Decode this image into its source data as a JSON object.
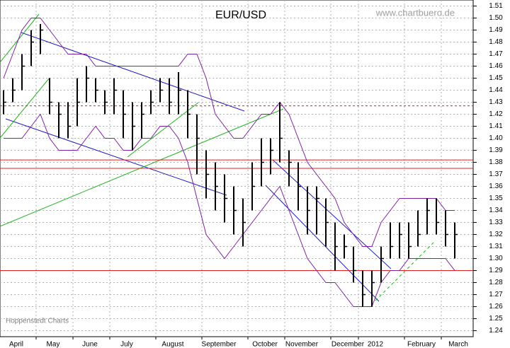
{
  "chart_data": {
    "type": "hlc",
    "title": "EUR/USD",
    "annotations": [
      "www.chartbuero.de",
      "Hoppenstedt Charts"
    ],
    "categories": [
      "April",
      null,
      null,
      null,
      "May",
      null,
      null,
      null,
      "June",
      null,
      null,
      null,
      "July",
      null,
      null,
      null,
      null,
      "August",
      null,
      null,
      null,
      null,
      "September",
      null,
      null,
      null,
      null,
      "October",
      null,
      null,
      null,
      "November",
      null,
      null,
      null,
      null,
      "December",
      null,
      null,
      "2012",
      null,
      null,
      null,
      null,
      "February",
      null,
      null,
      null,
      "March",
      null
    ],
    "high": [
      1.44,
      1.45,
      1.47,
      1.49,
      1.495,
      1.45,
      1.43,
      1.43,
      1.45,
      1.46,
      1.45,
      1.44,
      1.45,
      1.44,
      1.43,
      1.43,
      1.44,
      1.45,
      1.45,
      1.455,
      1.44,
      1.42,
      1.39,
      1.38,
      1.37,
      1.36,
      1.35,
      1.38,
      1.4,
      1.4,
      1.43,
      1.39,
      1.38,
      1.36,
      1.36,
      1.35,
      1.33,
      1.32,
      1.31,
      1.29,
      1.29,
      1.31,
      1.33,
      1.33,
      1.33,
      1.34,
      1.35,
      1.35,
      1.34,
      1.33
    ],
    "low": [
      1.42,
      1.43,
      1.44,
      1.46,
      1.47,
      1.42,
      1.4,
      1.4,
      1.41,
      1.43,
      1.43,
      1.42,
      1.42,
      1.4,
      1.39,
      1.4,
      1.42,
      1.43,
      1.42,
      1.42,
      1.4,
      1.37,
      1.35,
      1.34,
      1.33,
      1.32,
      1.31,
      1.34,
      1.36,
      1.37,
      1.38,
      1.36,
      1.34,
      1.32,
      1.32,
      1.31,
      1.29,
      1.3,
      1.28,
      1.26,
      1.26,
      1.28,
      1.3,
      1.3,
      1.3,
      1.31,
      1.32,
      1.32,
      1.31,
      1.3
    ],
    "close": [
      1.43,
      1.44,
      1.46,
      1.48,
      1.49,
      1.43,
      1.42,
      1.41,
      1.43,
      1.45,
      1.44,
      1.43,
      1.44,
      1.42,
      1.41,
      1.42,
      1.43,
      1.44,
      1.43,
      1.44,
      1.42,
      1.4,
      1.37,
      1.36,
      1.35,
      1.34,
      1.33,
      1.36,
      1.38,
      1.39,
      1.4,
      1.38,
      1.36,
      1.34,
      1.35,
      1.33,
      1.31,
      1.31,
      1.29,
      1.27,
      1.28,
      1.3,
      1.31,
      1.32,
      1.31,
      1.32,
      1.34,
      1.33,
      1.32,
      1.32
    ],
    "color": "#000000",
    "bands": {
      "color": "#8020a0",
      "upper": [
        1.45,
        1.47,
        1.49,
        1.5,
        1.5,
        1.49,
        1.48,
        1.47,
        1.47,
        1.47,
        1.46,
        1.46,
        1.46,
        1.46,
        1.46,
        1.46,
        1.46,
        1.46,
        1.46,
        1.46,
        1.47,
        1.47,
        1.45,
        1.42,
        1.41,
        1.4,
        1.4,
        1.41,
        1.42,
        1.42,
        1.43,
        1.42,
        1.4,
        1.38,
        1.37,
        1.36,
        1.35,
        1.33,
        1.32,
        1.31,
        1.31,
        1.33,
        1.34,
        1.35,
        1.35,
        1.35,
        1.35,
        1.35,
        1.34,
        1.34
      ],
      "lower": [
        1.4,
        1.4,
        1.4,
        1.41,
        1.42,
        1.4,
        1.39,
        1.39,
        1.39,
        1.4,
        1.41,
        1.4,
        1.4,
        1.39,
        1.39,
        1.4,
        1.4,
        1.41,
        1.41,
        1.4,
        1.38,
        1.35,
        1.32,
        1.31,
        1.3,
        1.31,
        1.32,
        1.33,
        1.34,
        1.35,
        1.36,
        1.34,
        1.32,
        1.3,
        1.29,
        1.28,
        1.28,
        1.27,
        1.26,
        1.26,
        1.26,
        1.28,
        1.29,
        1.29,
        1.3,
        1.3,
        1.3,
        1.3,
        1.3,
        1.29
      ]
    },
    "levels": {
      "color": "#e02020",
      "values": [
        1.427,
        1.382,
        1.375,
        1.29
      ],
      "dashed": [
        true,
        false,
        false,
        false
      ]
    },
    "ylim": [
      1.235,
      1.515
    ],
    "yticks": [
      1.24,
      1.25,
      1.26,
      1.27,
      1.28,
      1.29,
      {
        "value": 1.3,
        "label": "1.30"
      },
      1.31,
      1.32,
      1.33,
      1.34,
      1.35,
      1.36,
      1.37,
      1.38,
      1.39,
      {
        "value": 1.4,
        "label": "1.40"
      },
      1.41,
      1.42,
      1.43,
      1.44,
      1.45,
      1.46,
      1.47,
      1.48,
      1.49,
      {
        "value": 1.5,
        "label": "1.50"
      },
      1.51
    ],
    "grid": true
  }
}
